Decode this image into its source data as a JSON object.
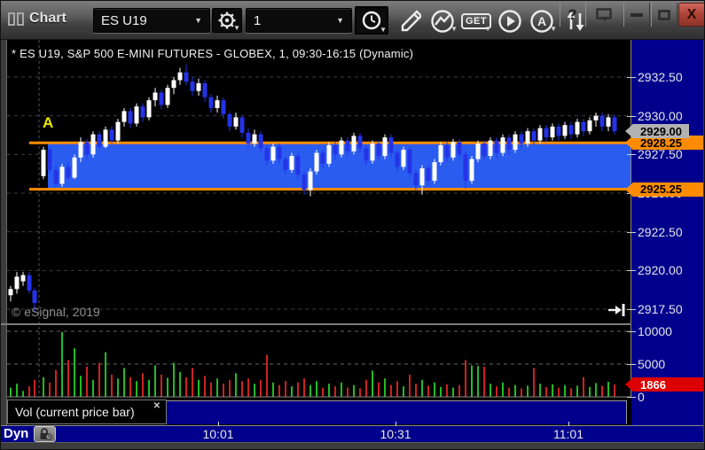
{
  "titlebar": {
    "title": "Chart",
    "symbol_select": "ES U19",
    "interval_select": "1",
    "get_label": "GET",
    "a_label": "A",
    "help_label": "?",
    "close_label": "X"
  },
  "chart": {
    "title": "* ES U19, S&P 500 E-MINI FUTURES - GLOBEX, 1, 09:30-16:15 (Dynamic)",
    "copyright": "© eSignal, 2019",
    "annotation": "A"
  },
  "vol_panel": {
    "label": "Vol (current price bar)",
    "close_label": "✕"
  },
  "time_axis": {
    "mode_label": "Dyn"
  },
  "chart_data": {
    "type": "candlestick",
    "symbol": "ES U19",
    "description": "S&P 500 E-MINI FUTURES - GLOBEX",
    "interval_minutes": 1,
    "session": "09:30-16:15",
    "mode": "Dynamic",
    "price_ticks": [
      "2932.50",
      "2930.00",
      "2927.50",
      "2925.00",
      "2922.50",
      "2920.00",
      "2917.50"
    ],
    "price_tick_values": [
      2932.5,
      2930.0,
      2927.5,
      2925.0,
      2922.5,
      2920.0,
      2917.5
    ],
    "last_price_label": "2929.00",
    "last_price": 2929.0,
    "zone": {
      "top": 2928.25,
      "bottom": 2925.25,
      "top_label": "2928.25",
      "bottom_label": "2925.25"
    },
    "volume_ticks": [
      "10000",
      "5000",
      "0"
    ],
    "volume_tick_values": [
      10000,
      5000,
      0
    ],
    "last_volume_label": "1866",
    "last_volume": 1866,
    "time_ticks": [
      "10:01",
      "10:31",
      "11:01"
    ],
    "opening_candles": [
      [
        2918.4,
        2919.0,
        2918.0,
        2918.8
      ],
      [
        2918.8,
        2919.9,
        2918.5,
        2919.6
      ],
      [
        2919.3,
        2919.9,
        2919.0,
        2919.7
      ],
      [
        2919.7,
        2919.9,
        2918.5,
        2918.7
      ],
      [
        2918.7,
        2918.9,
        2917.3,
        2917.9
      ]
    ],
    "opening_volumes": [
      1400,
      2000,
      900,
      1600,
      2600
    ],
    "candles": [
      [
        2926.1,
        2928.0,
        2925.9,
        2927.8
      ],
      [
        2927.8,
        2928.0,
        2926.3,
        2926.5
      ],
      [
        2926.5,
        2926.8,
        2925.4,
        2925.6
      ],
      [
        2925.6,
        2926.9,
        2925.4,
        2926.7
      ],
      [
        2926.7,
        2927.0,
        2925.8,
        2926.0
      ],
      [
        2926.0,
        2927.5,
        2925.9,
        2927.3
      ],
      [
        2927.3,
        2928.6,
        2927.0,
        2928.3
      ],
      [
        2928.3,
        2928.5,
        2927.2,
        2927.5
      ],
      [
        2927.5,
        2929.0,
        2927.3,
        2928.8
      ],
      [
        2928.8,
        2929.0,
        2927.8,
        2928.0
      ],
      [
        2928.0,
        2929.3,
        2927.9,
        2929.1
      ],
      [
        2929.1,
        2929.3,
        2928.2,
        2928.4
      ],
      [
        2928.4,
        2929.8,
        2928.2,
        2929.6
      ],
      [
        2929.6,
        2930.5,
        2929.3,
        2930.3
      ],
      [
        2930.3,
        2930.5,
        2929.2,
        2929.5
      ],
      [
        2929.5,
        2930.8,
        2929.3,
        2930.6
      ],
      [
        2930.6,
        2930.8,
        2929.6,
        2929.9
      ],
      [
        2929.9,
        2931.2,
        2929.7,
        2931.0
      ],
      [
        2931.0,
        2931.8,
        2930.6,
        2931.5
      ],
      [
        2931.5,
        2931.7,
        2930.4,
        2930.7
      ],
      [
        2930.7,
        2932.0,
        2930.5,
        2931.8
      ],
      [
        2931.8,
        2932.5,
        2931.4,
        2932.3
      ],
      [
        2932.3,
        2933.1,
        2932.0,
        2932.8
      ],
      [
        2932.8,
        2933.3,
        2932.0,
        2932.2
      ],
      [
        2932.2,
        2932.5,
        2931.3,
        2931.6
      ],
      [
        2931.6,
        2932.4,
        2931.3,
        2932.1
      ],
      [
        2932.1,
        2932.3,
        2930.9,
        2931.2
      ],
      [
        2931.2,
        2931.4,
        2930.2,
        2930.5
      ],
      [
        2930.5,
        2931.3,
        2930.2,
        2931.0
      ],
      [
        2931.0,
        2931.2,
        2929.8,
        2930.1
      ],
      [
        2930.1,
        2930.3,
        2929.0,
        2929.3
      ],
      [
        2929.3,
        2930.2,
        2929.1,
        2929.9
      ],
      [
        2929.9,
        2930.0,
        2928.6,
        2928.9
      ],
      [
        2928.9,
        2929.2,
        2927.9,
        2928.2
      ],
      [
        2928.2,
        2929.1,
        2928.0,
        2928.8
      ],
      [
        2928.8,
        2929.0,
        2927.6,
        2927.9
      ],
      [
        2927.9,
        2928.1,
        2926.8,
        2927.1
      ],
      [
        2927.1,
        2928.2,
        2926.9,
        2928.0
      ],
      [
        2928.0,
        2928.2,
        2926.9,
        2927.2
      ],
      [
        2927.2,
        2927.4,
        2926.2,
        2926.5
      ],
      [
        2926.5,
        2927.6,
        2926.3,
        2927.4
      ],
      [
        2927.4,
        2927.6,
        2925.9,
        2926.2
      ],
      [
        2926.2,
        2926.4,
        2924.9,
        2925.2
      ],
      [
        2925.2,
        2926.6,
        2924.8,
        2926.4
      ],
      [
        2926.4,
        2927.8,
        2926.2,
        2927.6
      ],
      [
        2927.6,
        2927.8,
        2926.6,
        2926.9
      ],
      [
        2926.9,
        2928.3,
        2926.7,
        2928.1
      ],
      [
        2928.1,
        2928.3,
        2927.2,
        2927.5
      ],
      [
        2927.5,
        2928.6,
        2927.3,
        2928.4
      ],
      [
        2928.4,
        2928.6,
        2927.4,
        2927.7
      ],
      [
        2927.7,
        2928.9,
        2927.5,
        2928.7
      ],
      [
        2928.7,
        2928.9,
        2927.6,
        2927.9
      ],
      [
        2927.9,
        2928.1,
        2926.8,
        2927.1
      ],
      [
        2927.1,
        2928.4,
        2926.9,
        2928.2
      ],
      [
        2928.2,
        2928.4,
        2927.1,
        2927.4
      ],
      [
        2927.4,
        2928.8,
        2927.2,
        2928.6
      ],
      [
        2928.6,
        2928.8,
        2927.3,
        2927.6
      ],
      [
        2927.6,
        2927.8,
        2926.4,
        2926.7
      ],
      [
        2926.7,
        2928.0,
        2926.5,
        2927.8
      ],
      [
        2927.8,
        2928.0,
        2926.0,
        2926.3
      ],
      [
        2926.3,
        2926.5,
        2925.2,
        2925.5
      ],
      [
        2925.5,
        2926.8,
        2924.9,
        2926.6
      ],
      [
        2926.6,
        2926.8,
        2925.5,
        2925.8
      ],
      [
        2925.8,
        2927.2,
        2925.6,
        2927.0
      ],
      [
        2927.0,
        2928.3,
        2926.8,
        2928.1
      ],
      [
        2928.1,
        2928.3,
        2927.0,
        2927.3
      ],
      [
        2927.3,
        2928.5,
        2927.1,
        2928.3
      ],
      [
        2928.3,
        2928.5,
        2927.2,
        2927.5
      ],
      [
        2927.5,
        2927.7,
        2925.3,
        2925.8
      ],
      [
        2925.8,
        2927.4,
        2925.6,
        2927.2
      ],
      [
        2927.2,
        2928.4,
        2927.0,
        2928.2
      ],
      [
        2928.2,
        2928.4,
        2927.1,
        2927.4
      ],
      [
        2927.4,
        2928.6,
        2927.2,
        2928.4
      ],
      [
        2928.4,
        2928.6,
        2927.3,
        2927.6
      ],
      [
        2927.6,
        2928.8,
        2927.4,
        2928.6
      ],
      [
        2928.6,
        2928.8,
        2927.5,
        2927.8
      ],
      [
        2927.8,
        2929.0,
        2927.6,
        2928.8
      ],
      [
        2928.8,
        2929.0,
        2927.9,
        2928.2
      ],
      [
        2928.2,
        2929.2,
        2928.0,
        2929.0
      ],
      [
        2929.0,
        2929.2,
        2928.1,
        2928.4
      ],
      [
        2928.4,
        2929.4,
        2928.2,
        2929.2
      ],
      [
        2929.2,
        2929.4,
        2928.3,
        2928.6
      ],
      [
        2928.6,
        2929.5,
        2928.4,
        2929.3
      ],
      [
        2929.3,
        2929.5,
        2928.4,
        2928.7
      ],
      [
        2928.7,
        2929.6,
        2928.5,
        2929.4
      ],
      [
        2929.4,
        2929.6,
        2928.5,
        2928.8
      ],
      [
        2928.8,
        2929.8,
        2928.6,
        2929.6
      ],
      [
        2929.6,
        2929.8,
        2928.7,
        2929.0
      ],
      [
        2929.0,
        2929.9,
        2928.8,
        2929.7
      ],
      [
        2929.7,
        2930.2,
        2929.3,
        2930.0
      ],
      [
        2930.0,
        2930.2,
        2929.0,
        2929.3
      ],
      [
        2929.3,
        2930.1,
        2929.0,
        2929.9
      ],
      [
        2929.9,
        2930.1,
        2928.8,
        2929.0
      ]
    ],
    "volumes": [
      3000,
      2200,
      4100,
      9900,
      5600,
      7400,
      3200,
      4600,
      2600,
      5200,
      6800,
      3400,
      2800,
      4400,
      3000,
      2400,
      3600,
      2600,
      4800,
      3400,
      2900,
      5200,
      3800,
      3000,
      4400,
      2600,
      3200,
      2200,
      2800,
      2000,
      2600,
      3600,
      2400,
      2800,
      2000,
      2600,
      6400,
      2200,
      1800,
      2400,
      1600,
      2200,
      2800,
      1800,
      2400,
      1400,
      2000,
      1600,
      2200,
      1400,
      1800,
      1300,
      2600,
      4000,
      2200,
      2800,
      1800,
      2400,
      1600,
      3400,
      2000,
      2600,
      1700,
      2200,
      1500,
      1900,
      1400,
      1800,
      5600,
      4800,
      4700,
      4600,
      2000,
      1600,
      2200,
      1400,
      1800,
      1300,
      1700,
      4400,
      2000,
      1500,
      1900,
      1400,
      1800,
      1300,
      1700,
      3000,
      1500,
      2100,
      1700,
      2300,
      1866
    ],
    "colors": {
      "up": "#ffffff",
      "down": "#2433e8",
      "vol_up": "#22bb22",
      "vol_down": "#cc2222",
      "zone_fill": "#2a5cf0",
      "zone_line": "#ff8c00",
      "axis_bg": "#00008c",
      "last_price_bg": "#b2b2b2",
      "last_volume_bg": "#dd0000",
      "grid": "#3c3c3c",
      "annotation": "#e8e800"
    }
  }
}
